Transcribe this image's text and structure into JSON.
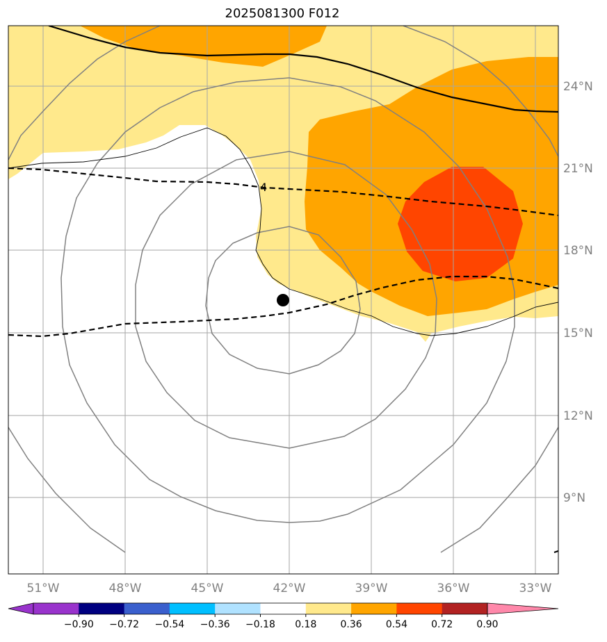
{
  "title": "2025081300 F012",
  "map": {
    "lon_labels": [
      "51°W",
      "48°W",
      "45°W",
      "42°W",
      "39°W",
      "36°W",
      "33°W"
    ],
    "lat_labels": [
      "24°N",
      "21°N",
      "18°N",
      "15°N",
      "12°N",
      "9°N"
    ],
    "contour_label": "4",
    "storm_center": {
      "lon": -42.2,
      "lat": 16.2
    },
    "fill_colors": {
      "light_yellow": "#ffe98c",
      "orange": "#ffa500",
      "red_orange": "#ff4500"
    }
  },
  "colorbar": {
    "ticks": [
      "−0.90",
      "−0.72",
      "−0.54",
      "−0.36",
      "−0.18",
      "0.18",
      "0.36",
      "0.54",
      "0.72",
      "0.90"
    ],
    "colors": [
      "#9933cc",
      "#000080",
      "#3a5fcd",
      "#00bfff",
      "#b0e2ff",
      "#ffffff",
      "#ffe98c",
      "#ffa500",
      "#ff4500",
      "#b22222",
      "#ff88aa",
      "#ff88aa"
    ]
  }
}
